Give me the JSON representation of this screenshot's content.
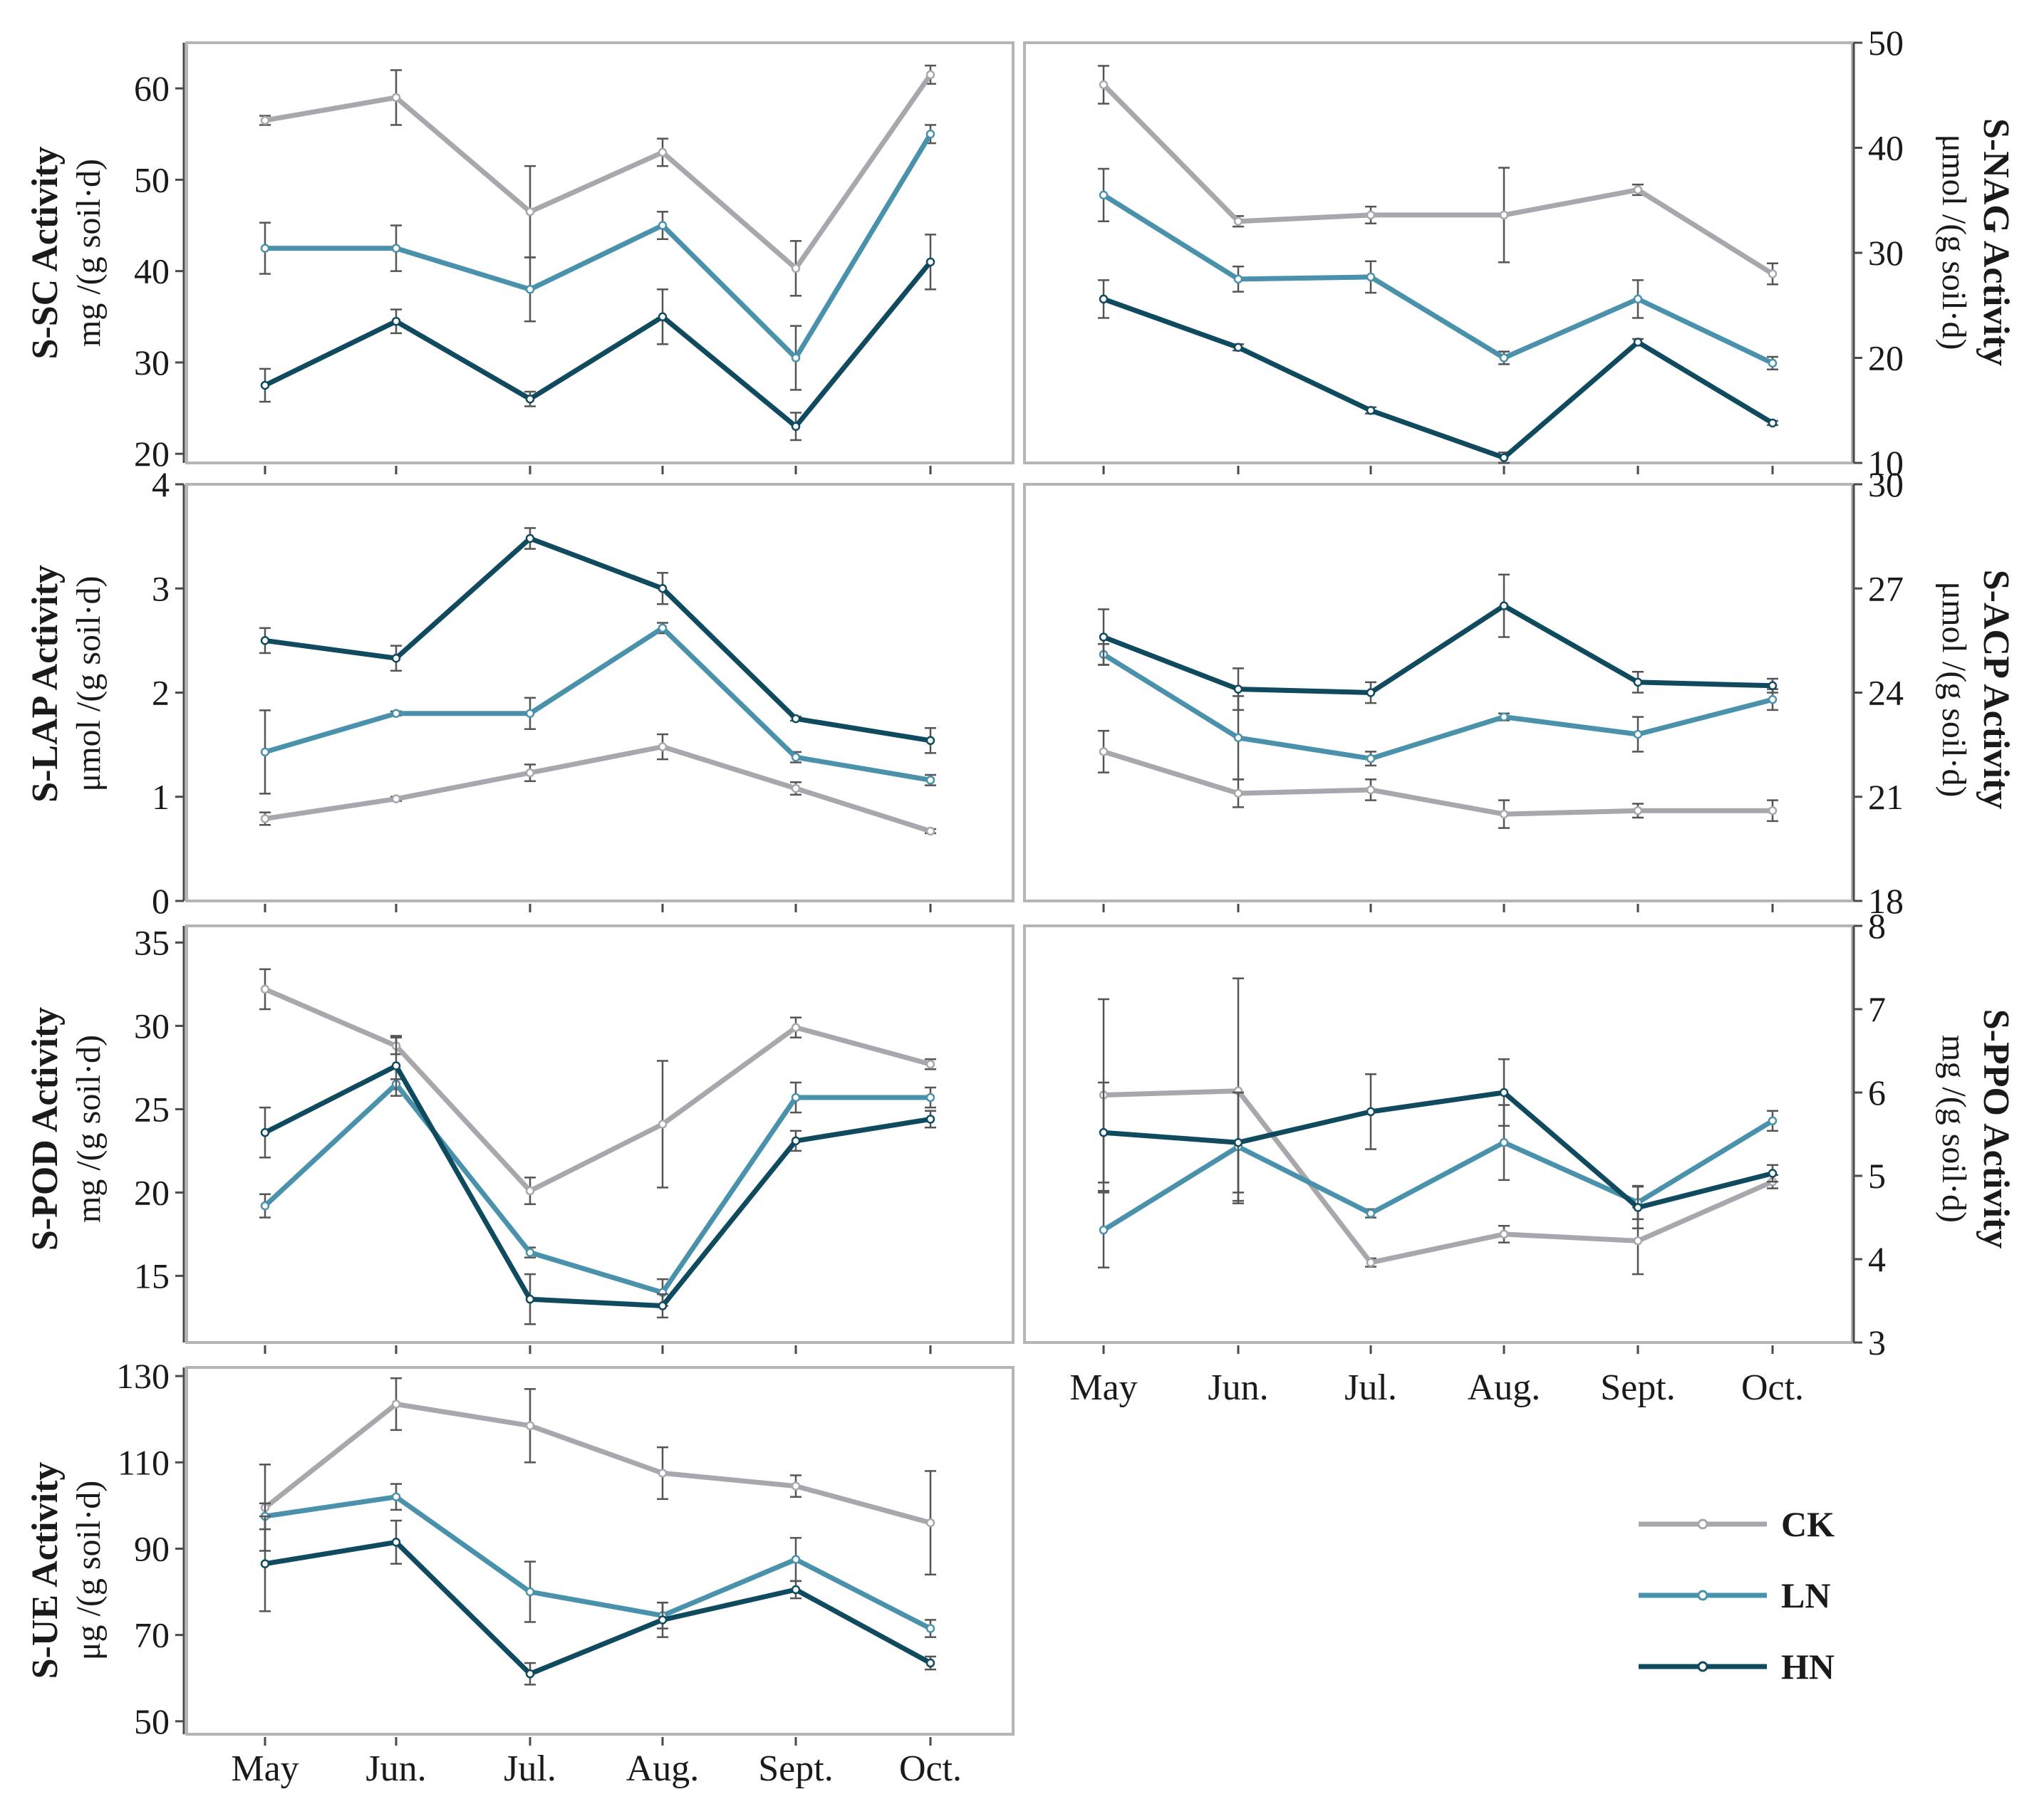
{
  "colors": {
    "CK": "#a7a7ae",
    "LN": "#4a92ab",
    "HN": "#0f4a5f"
  },
  "months": [
    "May",
    "Jun.",
    "Jul.",
    "Aug.",
    "Sept.",
    "Oct."
  ],
  "legend": [
    "CK",
    "LN",
    "HN"
  ],
  "chart_data": [
    {
      "id": "ssc",
      "type": "line",
      "side": "left",
      "title": "S-SC Activity",
      "unit": "mg /(g soil·d)",
      "categories": [
        "May",
        "Jun.",
        "Jul.",
        "Aug.",
        "Sept.",
        "Oct."
      ],
      "ylim": [
        19,
        65
      ],
      "yticks": [
        20,
        30,
        40,
        50,
        60
      ],
      "series": [
        {
          "name": "CK",
          "values": [
            56.5,
            59,
            46.5,
            53,
            40.3,
            61.5
          ],
          "errors": [
            0.5,
            3,
            5,
            1.5,
            3,
            1
          ]
        },
        {
          "name": "LN",
          "values": [
            42.5,
            42.5,
            38,
            45,
            30.5,
            55
          ],
          "errors": [
            2.8,
            2.5,
            3.5,
            1.5,
            3.5,
            1
          ]
        },
        {
          "name": "HN",
          "values": [
            27.5,
            34.5,
            26,
            35,
            23,
            41
          ],
          "errors": [
            1.8,
            1.3,
            0.8,
            3,
            1.5,
            3
          ]
        }
      ],
      "xticks_shown": false
    },
    {
      "id": "snag",
      "type": "line",
      "side": "right",
      "title": "S-NAG Activity",
      "unit": "μmol /(g soil·d)",
      "categories": [
        "May",
        "Jun.",
        "Jul.",
        "Aug.",
        "Sept.",
        "Oct."
      ],
      "ylim": [
        10,
        50
      ],
      "yticks": [
        10,
        20,
        30,
        40,
        50
      ],
      "series": [
        {
          "name": "CK",
          "values": [
            46,
            33,
            33.6,
            33.6,
            36,
            28
          ],
          "errors": [
            1.8,
            0.5,
            0.8,
            4.5,
            0.5,
            1
          ]
        },
        {
          "name": "LN",
          "values": [
            35.5,
            27.5,
            27.7,
            20,
            25.6,
            19.5
          ],
          "errors": [
            2.5,
            1.2,
            1.5,
            0.6,
            1.8,
            0.6
          ]
        },
        {
          "name": "HN",
          "values": [
            25.6,
            21,
            15,
            10.5,
            21.5,
            13.8
          ],
          "errors": [
            1.8,
            0.3,
            0.3,
            0.5,
            0.3,
            0.2
          ]
        }
      ],
      "xticks_shown": false
    },
    {
      "id": "slap",
      "type": "line",
      "side": "left",
      "title": "S-LAP Activity",
      "unit": "μmol /(g soil·d)",
      "categories": [
        "May",
        "Jun.",
        "Jul.",
        "Aug.",
        "Sept.",
        "Oct."
      ],
      "ylim": [
        0,
        4
      ],
      "yticks": [
        0,
        1,
        2,
        3,
        4
      ],
      "series": [
        {
          "name": "CK",
          "values": [
            0.79,
            0.98,
            1.23,
            1.48,
            1.08,
            0.67
          ],
          "errors": [
            0.06,
            0.02,
            0.08,
            0.12,
            0.06,
            0.02
          ]
        },
        {
          "name": "LN",
          "values": [
            1.43,
            1.8,
            1.8,
            2.62,
            1.38,
            1.16
          ],
          "errors": [
            0.4,
            0.02,
            0.15,
            0.05,
            0.05,
            0.05
          ]
        },
        {
          "name": "HN",
          "values": [
            2.5,
            2.33,
            3.48,
            3.0,
            1.75,
            1.54
          ],
          "errors": [
            0.12,
            0.12,
            0.1,
            0.15,
            0.02,
            0.12
          ]
        }
      ],
      "xticks_shown": false
    },
    {
      "id": "sacp",
      "type": "line",
      "side": "right",
      "title": "S-ACP Activity",
      "unit": "μmol /(g soil·d)",
      "categories": [
        "May",
        "Jun.",
        "Jul.",
        "Aug.",
        "Sept.",
        "Oct."
      ],
      "ylim": [
        18,
        30
      ],
      "yticks": [
        18,
        21,
        24,
        27,
        30
      ],
      "series": [
        {
          "name": "CK",
          "values": [
            22.3,
            21.1,
            21.2,
            20.5,
            20.6,
            20.6
          ],
          "errors": [
            0.6,
            0.4,
            0.3,
            0.4,
            0.2,
            0.3
          ]
        },
        {
          "name": "LN",
          "values": [
            25.1,
            22.7,
            22.1,
            23.3,
            22.8,
            23.8
          ],
          "errors": [
            0.3,
            1.2,
            0.2,
            0.1,
            0.5,
            0.3
          ]
        },
        {
          "name": "HN",
          "values": [
            25.6,
            24.1,
            24.0,
            26.5,
            24.3,
            24.2
          ],
          "errors": [
            0.8,
            0.6,
            0.3,
            0.9,
            0.3,
            0.2
          ]
        }
      ],
      "xticks_shown": false
    },
    {
      "id": "spod",
      "type": "line",
      "side": "left",
      "title": "S-POD Activity",
      "unit": "mg /(g soil·d)",
      "categories": [
        "May",
        "Jun.",
        "Jul.",
        "Aug.",
        "Sept.",
        "Oct."
      ],
      "ylim": [
        11,
        36
      ],
      "yticks": [
        15,
        20,
        25,
        30,
        35
      ],
      "series": [
        {
          "name": "CK",
          "values": [
            32.2,
            28.8,
            20.1,
            24.1,
            29.9,
            27.7
          ],
          "errors": [
            1.2,
            0.5,
            0.8,
            3.8,
            0.6,
            0.3
          ]
        },
        {
          "name": "LN",
          "values": [
            19.2,
            26.5,
            16.4,
            14.0,
            25.7,
            25.7
          ],
          "errors": [
            0.7,
            0.3,
            0.3,
            0.8,
            0.9,
            0.6
          ]
        },
        {
          "name": "HN",
          "values": [
            23.6,
            27.6,
            13.6,
            13.2,
            23.1,
            24.4
          ],
          "errors": [
            1.5,
            1.8,
            1.5,
            0.7,
            0.6,
            0.5
          ]
        }
      ],
      "xticks_shown": true
    },
    {
      "id": "sppo",
      "type": "line",
      "side": "right",
      "title": "S-PPO Activity",
      "unit": "mg /(g soil·d)",
      "categories": [
        "May",
        "Jun.",
        "Jul.",
        "Aug.",
        "Sept.",
        "Oct."
      ],
      "ylim": [
        3,
        8
      ],
      "yticks": [
        3,
        4,
        5,
        6,
        7,
        8
      ],
      "series": [
        {
          "name": "CK",
          "values": [
            5.97,
            6.02,
            3.96,
            4.3,
            4.22,
            4.93
          ],
          "errors": [
            1.15,
            1.35,
            0.05,
            0.1,
            0.4,
            0.08
          ]
        },
        {
          "name": "LN",
          "values": [
            4.35,
            5.35,
            4.55,
            5.4,
            4.68,
            5.66
          ],
          "errors": [
            0.45,
            0.65,
            0.05,
            0.45,
            0.2,
            0.12
          ]
        },
        {
          "name": "HN",
          "values": [
            5.52,
            5.4,
            5.77,
            6.0,
            4.62,
            5.03
          ],
          "errors": [
            0.6,
            0.6,
            0.45,
            0.4,
            0.25,
            0.1
          ]
        }
      ],
      "xticks_shown": true
    },
    {
      "id": "sue",
      "type": "line",
      "side": "left",
      "title": "S-UE Activity",
      "unit": "μg /(g soil·d)",
      "categories": [
        "May",
        "Jun.",
        "Jul.",
        "Aug.",
        "Sept.",
        "Oct."
      ],
      "ylim": [
        47,
        132
      ],
      "yticks": [
        50,
        70,
        90,
        110,
        130
      ],
      "series": [
        {
          "name": "CK",
          "values": [
            99.5,
            123.5,
            118.5,
            107.5,
            104.5,
            96
          ],
          "errors": [
            10,
            6,
            8.5,
            6,
            2.5,
            12
          ]
        },
        {
          "name": "LN",
          "values": [
            97.5,
            102,
            80,
            74.5,
            87.5,
            71.5
          ],
          "errors": [
            3,
            3,
            7,
            3,
            5,
            2
          ]
        },
        {
          "name": "HN",
          "values": [
            86.5,
            91.5,
            61,
            73.5,
            80.5,
            63.5
          ],
          "errors": [
            11,
            5,
            2.5,
            4,
            2,
            1.5
          ]
        }
      ],
      "xticks_shown": true
    }
  ]
}
